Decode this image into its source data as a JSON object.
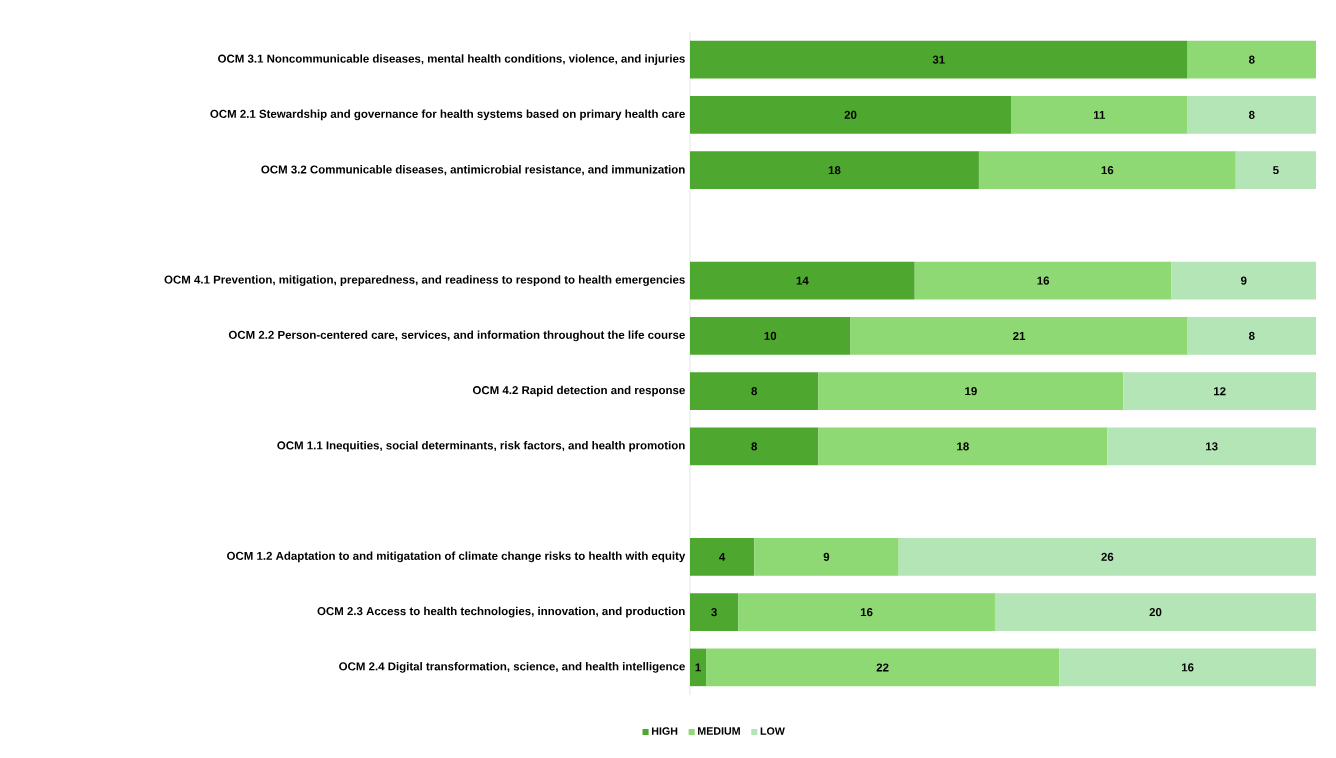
{
  "chart_data": {
    "type": "bar",
    "orientation": "horizontal",
    "stacked": true,
    "data_labels": true,
    "legend": "bottom",
    "tick_labels": "y",
    "xlim": [
      0,
      39
    ],
    "categories": [
      "OCM 3.1 Noncommunicable diseases, mental health conditions, violence, and injuries",
      "OCM 2.1 Stewardship and governance for health systems based on primary health care",
      "OCM 3.2 Communicable diseases, antimicrobial resistance, and immunization",
      null,
      "OCM 4.1 Prevention, mitigation, preparedness, and readiness to respond to health emergencies",
      "OCM 2.2 Person-centered care, services, and information throughout the life course",
      "OCM 4.2 Rapid detection and response",
      "OCM 1.1 Inequities, social determinants, risk factors, and health promotion",
      null,
      "OCM 1.2 Adaptation to and mitigatation of climate change risks to health with equity",
      "OCM 2.3 Access to health technologies, innovation, and production",
      "OCM 2.4 Digital transformation, science, and health intelligence"
    ],
    "series": [
      {
        "name": "HIGH",
        "color": "#4ea72e",
        "values": [
          31,
          20,
          18,
          null,
          14,
          10,
          8,
          8,
          null,
          4,
          3,
          1
        ]
      },
      {
        "name": "MEDIUM",
        "color": "#8ed973",
        "values": [
          8,
          11,
          16,
          null,
          16,
          21,
          19,
          18,
          null,
          9,
          16,
          22
        ]
      },
      {
        "name": "LOW",
        "color": "#b4e5b6",
        "values": [
          null,
          8,
          5,
          null,
          9,
          8,
          12,
          13,
          null,
          26,
          20,
          16
        ]
      }
    ]
  }
}
